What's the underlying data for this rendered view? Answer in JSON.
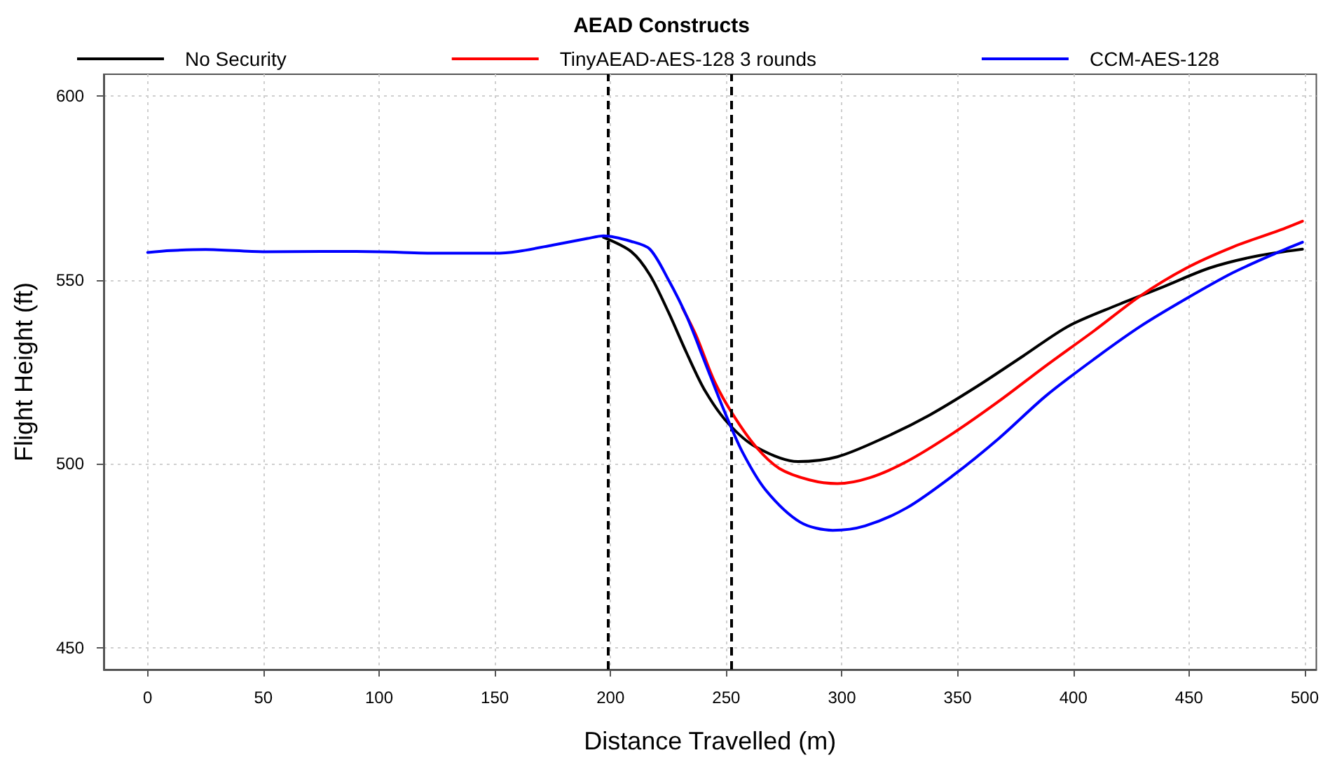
{
  "chart_data": {
    "type": "line",
    "title": "AEAD Constructs",
    "xlabel": "Distance Travelled (m)",
    "ylabel": "Flight Height (ft)",
    "xlim": [
      -19,
      505
    ],
    "ylim": [
      444,
      606
    ],
    "xticks": [
      0,
      50,
      100,
      150,
      200,
      250,
      300,
      350,
      400,
      450,
      500
    ],
    "yticks": [
      450,
      500,
      550,
      600
    ],
    "grid": true,
    "legend": "top",
    "line_style": "solid",
    "marker": "none",
    "ref_lines": [
      {
        "axis": "x",
        "value": 199,
        "line_style": "dashed",
        "color": "#000000"
      },
      {
        "axis": "x",
        "value": 252,
        "line_style": "dashed",
        "color": "#000000"
      }
    ],
    "series": [
      {
        "name": "No Security",
        "color": "#000000",
        "x": [
          197,
          209,
          217,
          225,
          233,
          241,
          251,
          263,
          281,
          298,
          318,
          338,
          358,
          378,
          398,
          419,
          439,
          459,
          479,
          499
        ],
        "values": [
          561.6,
          557.7,
          551.4,
          541.3,
          530,
          519.7,
          510.9,
          504.5,
          500.6,
          501.9,
          507,
          513.3,
          520.9,
          529.2,
          537.5,
          543.2,
          548.2,
          553.3,
          556.5,
          558.4
        ]
      },
      {
        "name": "TinyAEAD-AES-128 3 rounds",
        "color": "#ff0000",
        "x": [
          231,
          237,
          245,
          253,
          263,
          273,
          286,
          298,
          312,
          328,
          348,
          368,
          388,
          409,
          429,
          449,
          469,
          489,
          499
        ],
        "values": [
          542.5,
          534.9,
          522.3,
          513.3,
          504.5,
          498.7,
          495.6,
          494.6,
          496.2,
          500.6,
          508.3,
          517.1,
          526.6,
          536.2,
          545.7,
          553.3,
          559,
          563.5,
          566
        ]
      },
      {
        "name": "CCM-AES-128",
        "color": "#0000ff",
        "x": [
          0,
          10,
          25,
          50,
          75,
          100,
          125,
          150,
          160,
          175,
          190,
          197,
          209,
          217,
          225,
          233,
          241,
          249,
          257,
          267,
          282,
          296,
          310,
          328,
          348,
          368,
          388,
          409,
          429,
          449,
          469,
          489,
          499
        ],
        "values": [
          557.5,
          558,
          558.3,
          557.7,
          557.8,
          557.7,
          557.3,
          557.3,
          557.8,
          559.5,
          561.3,
          562,
          560.5,
          558.4,
          550.1,
          540,
          527.3,
          514.6,
          503.2,
          492.9,
          484.1,
          481.9,
          483.1,
          488,
          496.8,
          507,
          518.4,
          528.5,
          537.4,
          545,
          552,
          557.7,
          560.3
        ]
      }
    ]
  }
}
